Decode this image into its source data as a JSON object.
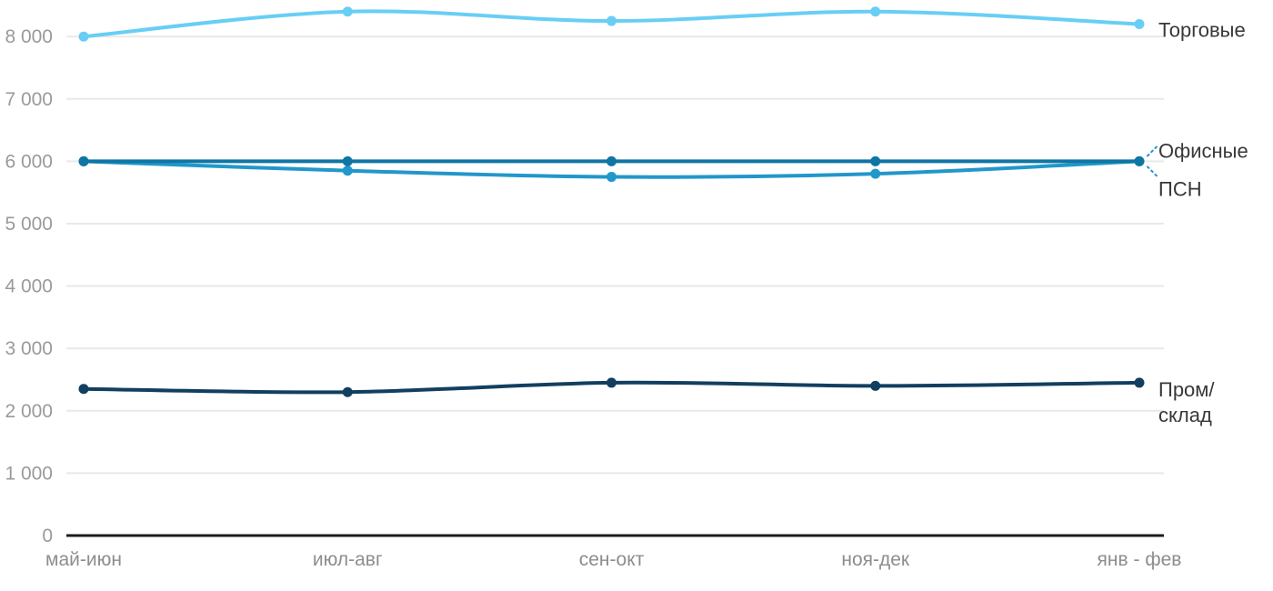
{
  "chart_data": {
    "type": "line",
    "title": "",
    "xlabel": "",
    "ylabel": "",
    "grid": "horizontal",
    "legend_position": "right-edge-labels",
    "categories": [
      "май-июн",
      "июл-авг",
      "сен-окт",
      "ноя-дек",
      "янв - фев"
    ],
    "series": [
      {
        "name": "Торговые",
        "label_lines": [
          "Торговые"
        ],
        "color": "#68cef5",
        "values": [
          8000,
          8400,
          8250,
          8400,
          8200
        ]
      },
      {
        "name": "Офисные",
        "label_lines": [
          "Офисные"
        ],
        "color": "#0f75a3",
        "values": [
          6000,
          6000,
          6000,
          6000,
          6000
        ]
      },
      {
        "name": "ПСН",
        "label_lines": [
          "ПСН"
        ],
        "color": "#2197cb",
        "values": [
          6000,
          5850,
          5750,
          5800,
          6000
        ]
      },
      {
        "name": "Пром/склад",
        "label_lines": [
          "Пром/",
          "склад"
        ],
        "color": "#123f60",
        "values": [
          2350,
          2300,
          2450,
          2400,
          2450
        ]
      }
    ],
    "yticks": {
      "values": [
        0,
        1000,
        2000,
        3000,
        4000,
        5000,
        6000,
        7000,
        8000
      ],
      "labels": [
        "0",
        "1 000",
        "2 000",
        "3 000",
        "4 000",
        "5 000",
        "6 000",
        "7 000",
        "8 000"
      ]
    },
    "ylim": [
      0,
      8600
    ],
    "colors": {
      "grid": "#e9e9e9",
      "axis": "#1c1c1c",
      "tick_text": "#9a9a9a",
      "category_text": "#8d8d8d",
      "series_label_text": "#383838",
      "leader": "#2197cb"
    }
  }
}
